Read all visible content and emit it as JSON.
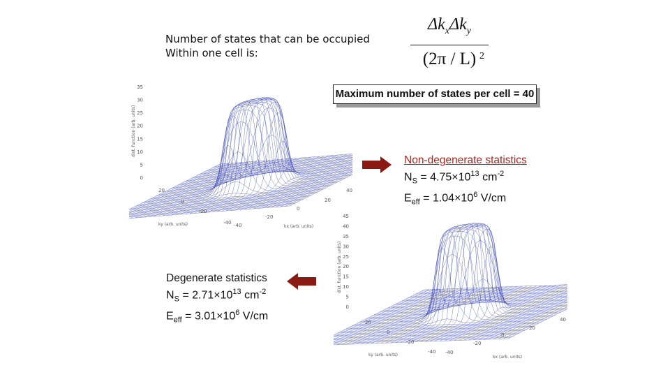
{
  "intro": {
    "line1": "Number of states that can be occupied",
    "line2": "Within one cell is:"
  },
  "formula": {
    "numerator_delta_kx": "Δk",
    "numerator_x_sub": "x",
    "numerator_delta_ky": "Δk",
    "numerator_y_sub": "y",
    "denominator": "(2π / L)",
    "exponent": "2"
  },
  "max_box": {
    "text": "Maximum number of states per cell = 40"
  },
  "nondegenerate": {
    "heading": "Non-degenerate statistics",
    "ns_label": "N",
    "ns_sub": "S",
    "ns_value": " = 4.75×10",
    "ns_exp": "13",
    "ns_unit": " cm",
    "ns_unit_exp": "-2",
    "eeff_label": "E",
    "eeff_sub": "eff",
    "eeff_value": " = 1.04×10",
    "eeff_exp": "6",
    "eeff_unit": " V/cm",
    "heading_color": "#b3221b"
  },
  "degenerate": {
    "heading": "Degenerate statistics",
    "ns_label": "N",
    "ns_sub": "S",
    "ns_value": " = 2.71×10",
    "ns_exp": "13",
    "ns_unit": " cm",
    "ns_unit_exp": "-2",
    "eeff_label": "E",
    "eeff_sub": "eff",
    "eeff_value": " = 3.01×10",
    "eeff_exp": "6",
    "eeff_unit": " V/cm"
  },
  "arrows": {
    "color": "#8b1a12",
    "right": "arrow-right-icon",
    "left": "arrow-left-icon"
  },
  "plot1": {
    "zlabel": "dist. function (arb. units)",
    "xlabel": "kx (arb. units)",
    "ylabel": "ky (arb. units)",
    "zticks": [
      "35",
      "30",
      "25",
      "20",
      "15",
      "10",
      "5",
      "0"
    ],
    "x_ticks": [
      "40",
      "20",
      "0",
      "-20",
      "-40"
    ],
    "y_ticks": [
      "20",
      "0",
      "-20",
      "-40"
    ],
    "mesh_color": "#3340b0"
  },
  "plot2": {
    "zlabel": "dist. function (arb. units)",
    "xlabel": "kx (arb. units)",
    "ylabel": "ky (arb. units)",
    "zticks": [
      "45",
      "40",
      "35",
      "30",
      "25",
      "20",
      "15",
      "10",
      "5",
      "0"
    ],
    "x_ticks": [
      "40",
      "20",
      "0",
      "-20",
      "-40"
    ],
    "y_ticks": [
      "20",
      "0",
      "-20",
      "-40"
    ],
    "mesh_color": "#3340b0"
  }
}
